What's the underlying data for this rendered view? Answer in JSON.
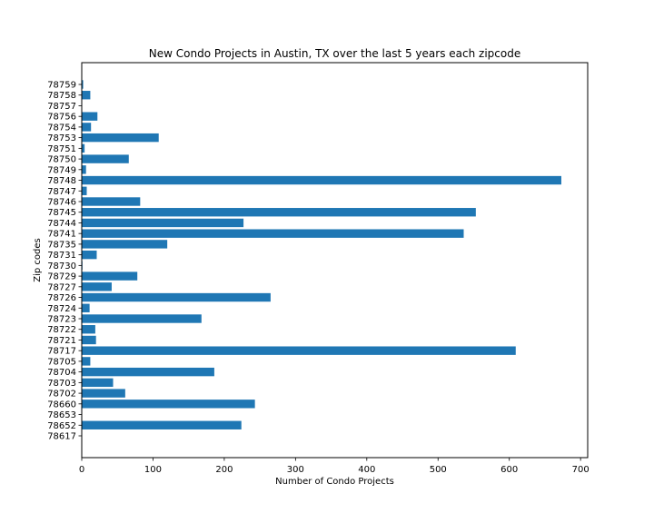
{
  "chart_data": {
    "type": "bar",
    "orientation": "horizontal",
    "title": "New Condo Projects in Austin, TX over the last 5 years each zipcode",
    "xlabel": "Number of Condo Projects",
    "ylabel": "Zip codes",
    "xlim": [
      0,
      710
    ],
    "xticks": [
      0,
      100,
      200,
      300,
      400,
      500,
      600,
      700
    ],
    "bar_color": "#1f77b4",
    "grid": false,
    "categories": [
      "78617",
      "78652",
      "78653",
      "78660",
      "78702",
      "78703",
      "78704",
      "78705",
      "78717",
      "78721",
      "78722",
      "78723",
      "78724",
      "78726",
      "78727",
      "78729",
      "78730",
      "78731",
      "78735",
      "78741",
      "78744",
      "78745",
      "78746",
      "78747",
      "78748",
      "78749",
      "78750",
      "78751",
      "78753",
      "78754",
      "78756",
      "78757",
      "78758",
      "78759"
    ],
    "values": [
      0,
      224,
      0,
      243,
      61,
      44,
      186,
      12,
      609,
      20,
      19,
      168,
      11,
      265,
      42,
      78,
      1,
      21,
      120,
      536,
      227,
      553,
      82,
      7,
      673,
      6,
      66,
      4,
      108,
      13,
      22,
      0,
      12,
      2
    ]
  }
}
